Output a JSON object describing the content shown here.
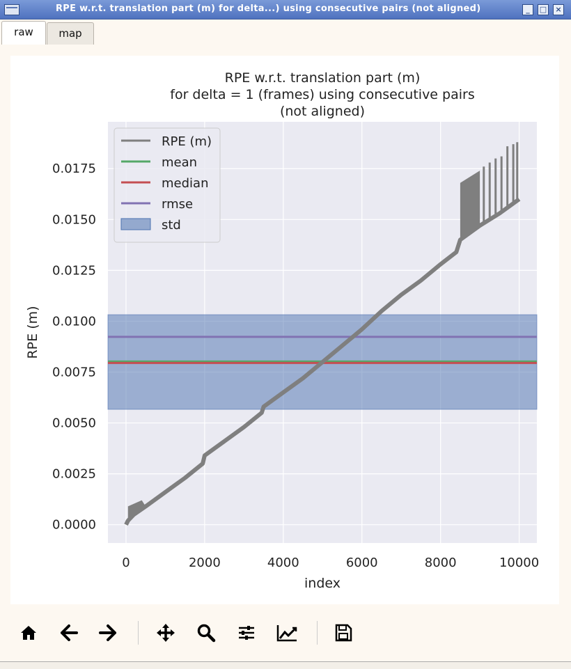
{
  "window": {
    "title": "RPE w.r.t. translation part (m) for delta...) using consecutive pairs (not aligned)",
    "buttons": [
      "minimize-icon",
      "maximize-icon",
      "close-icon"
    ]
  },
  "tabs": [
    {
      "label": "raw",
      "active": true
    },
    {
      "label": "map",
      "active": false
    }
  ],
  "toolbar": {
    "icons": [
      "home-icon",
      "back-arrow-icon",
      "forward-arrow-icon",
      "pan-move-icon",
      "zoom-magnifier-icon",
      "configure-subplots-icon",
      "edit-axis-curves-icon",
      "save-floppy-icon"
    ]
  },
  "chart_data": {
    "type": "line",
    "title_lines": [
      "RPE w.r.t. translation part (m)",
      "for delta = 1 (frames) using consecutive pairs",
      "(not aligned)"
    ],
    "xlabel": "index",
    "ylabel": "RPE (m)",
    "xlim": [
      -460,
      10450
    ],
    "ylim": [
      -0.0009,
      0.0198
    ],
    "xticks": [
      "0",
      "2000",
      "4000",
      "6000",
      "8000",
      "10000"
    ],
    "yticks": [
      "0.0000",
      "0.0025",
      "0.0050",
      "0.0075",
      "0.0100",
      "0.0125",
      "0.0150",
      "0.0175"
    ],
    "grid": true,
    "legend_position": "top-left",
    "legend": [
      "RPE (m)",
      "mean",
      "median",
      "rmse",
      "std"
    ],
    "colors": {
      "rpe": "#7f7f7f",
      "mean": "#55a868",
      "median": "#c44e52",
      "rmse": "#8172b2",
      "std": "#4c72b0",
      "plot_bg": "#eaeaf2"
    },
    "series": [
      {
        "name": "RPE (m)",
        "x": [
          0,
          50,
          200,
          500,
          1000,
          1500,
          1950,
          2000,
          2500,
          3000,
          3450,
          3500,
          4000,
          4500,
          5000,
          5500,
          6000,
          6500,
          7000,
          7500,
          8000,
          8400,
          8500,
          9000,
          9500,
          10000
        ],
        "y": [
          0.0,
          0.0002,
          0.0005,
          0.0009,
          0.0016,
          0.0023,
          0.003,
          0.0034,
          0.0041,
          0.0048,
          0.0055,
          0.0058,
          0.0065,
          0.0072,
          0.008,
          0.0088,
          0.0096,
          0.0105,
          0.0113,
          0.012,
          0.0128,
          0.0134,
          0.014,
          0.0147,
          0.0153,
          0.016
        ],
        "upper_band": [
          {
            "x": 50,
            "y": 0.0009
          },
          {
            "x": 400,
            "y": 0.0012
          },
          {
            "x": 8500,
            "y": 0.0168
          },
          {
            "x": 9000,
            "y": 0.0174
          },
          {
            "x": 9500,
            "y": 0.0182
          },
          {
            "x": 9950,
            "y": 0.0188
          }
        ]
      }
    ],
    "stats": {
      "mean": 0.00802,
      "median": 0.00795,
      "rmse": 0.00923,
      "std_range": [
        0.00567,
        0.01032
      ]
    }
  }
}
